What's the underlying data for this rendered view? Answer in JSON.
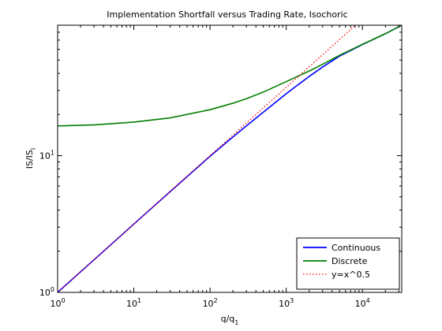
{
  "chart_data": {
    "type": "line",
    "title": "Implementation Shortfall versus Trading Rate, Isochoric",
    "xlabel": "q/q",
    "xlabel_sub": "1",
    "ylabel": "IS/IS",
    "ylabel_sub": "I",
    "xscale": "log",
    "yscale": "log",
    "xlim": [
      1,
      32768
    ],
    "ylim": [
      1,
      90
    ],
    "xticks": [
      {
        "value": 1,
        "base": "10",
        "exp": "0"
      },
      {
        "value": 10,
        "base": "10",
        "exp": "1"
      },
      {
        "value": 100,
        "base": "10",
        "exp": "2"
      },
      {
        "value": 1000,
        "base": "10",
        "exp": "3"
      },
      {
        "value": 10000,
        "base": "10",
        "exp": "4"
      }
    ],
    "yticks": [
      {
        "value": 1,
        "base": "10",
        "exp": "0"
      },
      {
        "value": 10,
        "base": "10",
        "exp": "1"
      }
    ],
    "grid": false,
    "legend_position": "bottom-right",
    "series": [
      {
        "name": "Continuous",
        "color": "#0000ff",
        "style": "solid",
        "x": [
          1,
          3,
          10,
          30,
          100,
          200,
          300,
          500,
          1000,
          2000,
          3000,
          5000,
          10000,
          20000,
          32768
        ],
        "y": [
          1,
          1.73,
          3.16,
          5.46,
          9.9,
          13.7,
          16.5,
          20.8,
          28.4,
          38.0,
          44.5,
          53.5,
          65.0,
          78.0,
          90.0
        ]
      },
      {
        "name": "Discrete",
        "color": "#007f00",
        "style": "solid",
        "x": [
          1,
          3,
          10,
          30,
          100,
          200,
          300,
          500,
          1000,
          2000,
          3000,
          5000,
          10000,
          20000,
          32768
        ],
        "y": [
          16.5,
          16.8,
          17.6,
          18.9,
          21.7,
          24.2,
          26.1,
          29.2,
          34.8,
          41.6,
          46.6,
          54.2,
          65.2,
          78.0,
          90.0
        ]
      },
      {
        "name": "y=x^0.5",
        "color": "#ff0000",
        "style": "dotted",
        "x": [
          1,
          10,
          100,
          1000,
          8100
        ],
        "y": [
          1,
          3.162,
          10,
          31.62,
          90
        ]
      }
    ]
  }
}
